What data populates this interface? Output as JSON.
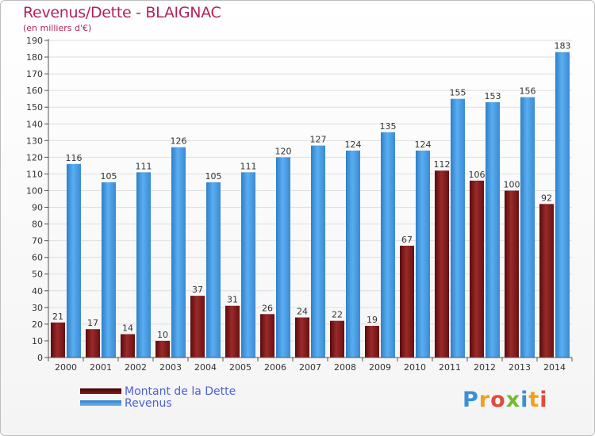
{
  "chart_data": {
    "type": "bar",
    "title": "Revenus/Dette - BLAIGNAC",
    "subtitle": "(en milliers d'€)",
    "categories": [
      "2000",
      "2001",
      "2002",
      "2003",
      "2004",
      "2005",
      "2006",
      "2007",
      "2008",
      "2009",
      "2010",
      "2011",
      "2012",
      "2013",
      "2014"
    ],
    "series": [
      {
        "name": "Montant de la Dette",
        "color": "#8b1a1a",
        "values": [
          21,
          17,
          14,
          10,
          37,
          31,
          26,
          24,
          22,
          19,
          67,
          112,
          106,
          100,
          92
        ]
      },
      {
        "name": "Revenus",
        "color": "#4a9fe0",
        "values": [
          116,
          105,
          111,
          126,
          105,
          111,
          120,
          127,
          124,
          135,
          124,
          155,
          153,
          156,
          183
        ]
      }
    ],
    "ylim": [
      0,
      190
    ],
    "yticks": [
      0,
      10,
      20,
      30,
      40,
      50,
      60,
      70,
      80,
      90,
      100,
      110,
      120,
      130,
      140,
      150,
      160,
      170,
      180,
      190
    ],
    "grid": true,
    "legend_position": "bottom-left"
  },
  "logo": {
    "text": "Proxiti",
    "letters": [
      "P",
      "r",
      "o",
      "x",
      "i",
      "t",
      "i"
    ]
  }
}
